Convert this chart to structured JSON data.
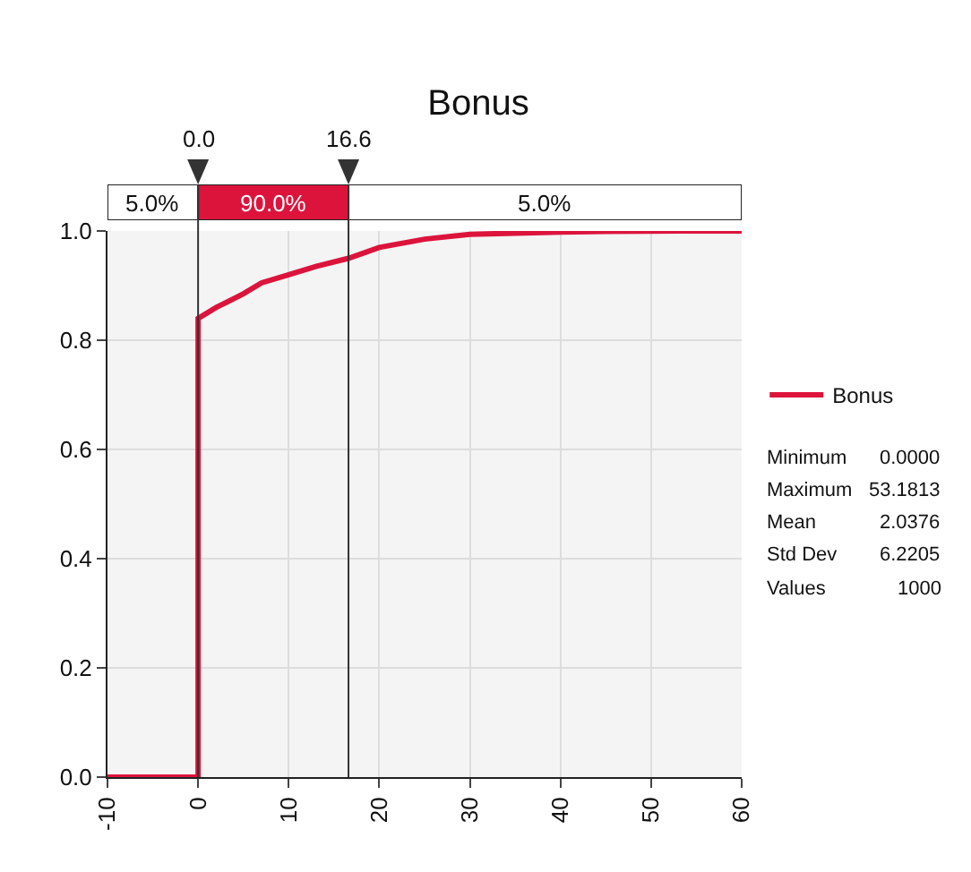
{
  "chart_data": {
    "type": "line",
    "title": "Bonus",
    "series": [
      {
        "name": "Bonus",
        "color": "#dc143c",
        "x": [
          -10,
          0,
          0,
          2,
          5,
          7,
          10,
          13,
          16.6,
          20,
          25,
          30,
          35,
          40,
          45,
          53.2,
          60
        ],
        "values": [
          0,
          0,
          0.84,
          0.86,
          0.885,
          0.905,
          0.92,
          0.935,
          0.95,
          0.97,
          0.985,
          0.994,
          0.996,
          0.998,
          0.999,
          1,
          1
        ]
      }
    ],
    "xlim": [
      -10,
      60
    ],
    "xticks": [
      -10,
      0,
      10,
      20,
      30,
      40,
      50,
      60
    ],
    "ylim": [
      0,
      1
    ],
    "yticks": [
      {
        "value": 0,
        "label": "0.0"
      },
      {
        "value": 0.2,
        "label": "0.2"
      },
      {
        "value": 0.4,
        "label": "0.4"
      },
      {
        "value": 0.6,
        "label": "0.6"
      },
      {
        "value": 0.8,
        "label": "0.8"
      },
      {
        "value": 1,
        "label": "1.0"
      }
    ],
    "ref_lines": [
      {
        "axis": "x",
        "value": 0,
        "label": "0.0",
        "color": "#333333"
      },
      {
        "axis": "x",
        "value": 16.6,
        "label": "16.6",
        "color": "#333333"
      }
    ],
    "annotations": [
      "5.0%",
      "90.0%",
      "5.0%",
      "Minimum",
      "0.0000",
      "Maximum",
      "53.1813",
      "Mean",
      "2.0376",
      "Std Dev",
      "6.2205",
      "Values",
      "1000"
    ],
    "grid": true,
    "legend": "right",
    "marker": "none",
    "line_style": "solid"
  }
}
